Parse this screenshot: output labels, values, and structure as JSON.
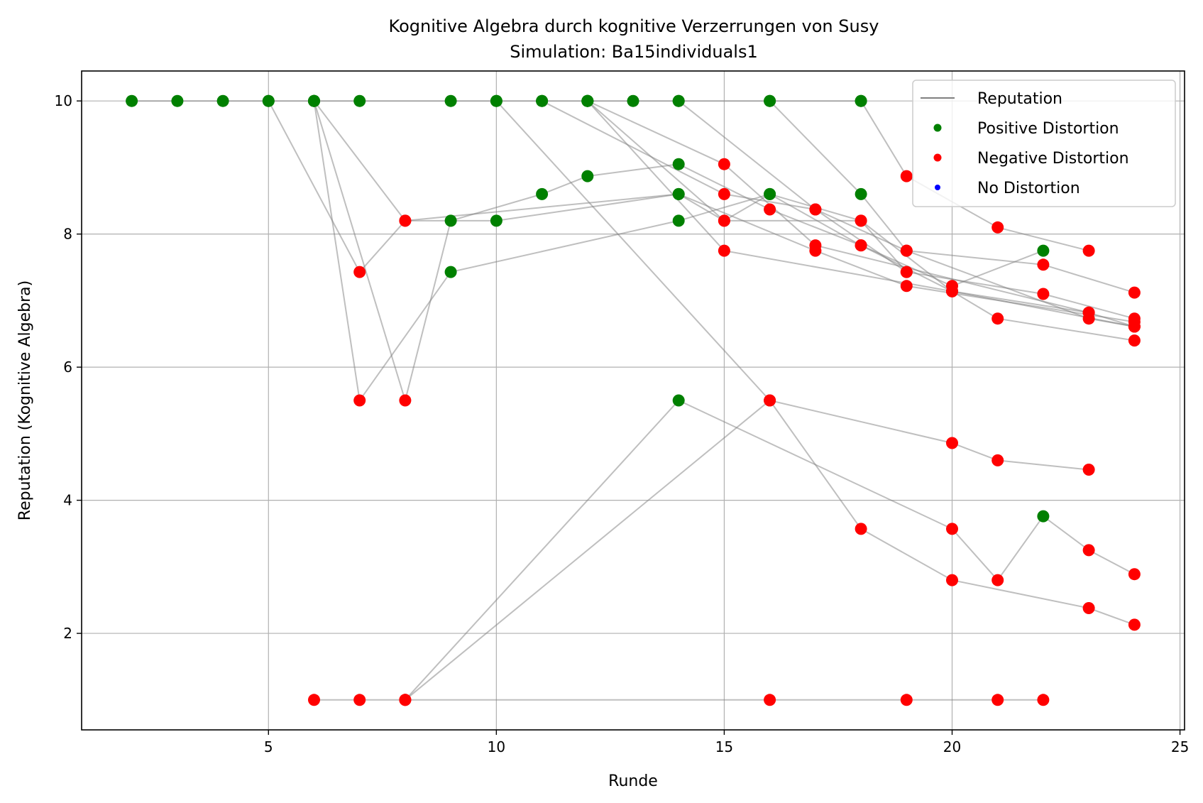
{
  "chart_data": {
    "type": "scatter",
    "title": "Kognitive Algebra durch kognitive Verzerrungen von Susy",
    "subtitle": "Simulation: Ba15individuals1",
    "xlabel": "Runde",
    "ylabel": "Reputation (Kognitive Algebra)",
    "xlim": [
      0.9,
      25.1
    ],
    "ylim": [
      0.55,
      10.45
    ],
    "xticks": [
      5,
      10,
      15,
      20,
      25
    ],
    "yticks": [
      2,
      4,
      6,
      8,
      10
    ],
    "grid": true,
    "legend_position": "top-right",
    "legend": [
      {
        "label": "Reputation",
        "kind": "line",
        "color": "#808080"
      },
      {
        "label": "Positive Distortion",
        "kind": "marker",
        "color": "#008000"
      },
      {
        "label": "Negative Distortion",
        "kind": "marker",
        "color": "#ff0000"
      },
      {
        "label": "No Distortion",
        "kind": "marker",
        "color": "#0000ff"
      }
    ],
    "colors": {
      "positive": "#008000",
      "negative": "#ff0000",
      "none": "#0000ff",
      "line": "#808080",
      "grid": "#b0b0b0"
    },
    "series": [
      {
        "points": [
          [
            2,
            10,
            "p"
          ],
          [
            3,
            10,
            "p"
          ],
          [
            4,
            10,
            "p"
          ],
          [
            5,
            10,
            "p"
          ],
          [
            6,
            10,
            "p"
          ],
          [
            7,
            10,
            "p"
          ],
          [
            9,
            10,
            "p"
          ],
          [
            10,
            10,
            "p"
          ],
          [
            11,
            10,
            "p"
          ],
          [
            12,
            10,
            "p"
          ],
          [
            13,
            10,
            "p"
          ],
          [
            14,
            10,
            "p"
          ],
          [
            16,
            10,
            "p"
          ],
          [
            18,
            10,
            "p"
          ]
        ]
      },
      {
        "points": [
          [
            5,
            10,
            "p"
          ],
          [
            7,
            7.43,
            "n"
          ],
          [
            8,
            8.2,
            "n"
          ],
          [
            14,
            8.6,
            "p"
          ],
          [
            15,
            8.2,
            "n"
          ],
          [
            16,
            8.6,
            "p"
          ],
          [
            18,
            8.2,
            "n"
          ],
          [
            19,
            7.43,
            "n"
          ]
        ]
      },
      {
        "points": [
          [
            6,
            10,
            "p"
          ],
          [
            7,
            5.5,
            "n"
          ],
          [
            9,
            7.43,
            "p"
          ],
          [
            14,
            8.2,
            "p"
          ],
          [
            16,
            8.6,
            "p"
          ],
          [
            18,
            7.83,
            "n"
          ],
          [
            20,
            7.22,
            "n"
          ],
          [
            22,
            7.75,
            "p"
          ]
        ]
      },
      {
        "points": [
          [
            6,
            10,
            "p"
          ],
          [
            8,
            5.5,
            "n"
          ],
          [
            9,
            8.2,
            "p"
          ],
          [
            11,
            8.6,
            "p"
          ],
          [
            12,
            8.87,
            "p"
          ],
          [
            14,
            9.05,
            "p"
          ],
          [
            16,
            8.37,
            "n"
          ],
          [
            18,
            7.83,
            "n"
          ],
          [
            20,
            7.14,
            "n"
          ],
          [
            24,
            6.61,
            "n"
          ]
        ]
      },
      {
        "points": [
          [
            6,
            10,
            "p"
          ],
          [
            8,
            8.2,
            "n"
          ],
          [
            10,
            8.2,
            "p"
          ],
          [
            14,
            8.6,
            "p"
          ],
          [
            17,
            7.75,
            "n"
          ],
          [
            19,
            7.22,
            "n"
          ],
          [
            24,
            6.68,
            "n"
          ]
        ]
      },
      {
        "points": [
          [
            10,
            10,
            "p"
          ],
          [
            16,
            5.5,
            "n"
          ],
          [
            20,
            4.86,
            "n"
          ],
          [
            21,
            4.6,
            "n"
          ],
          [
            23,
            4.46,
            "n"
          ]
        ]
      },
      {
        "points": [
          [
            11,
            10,
            "p"
          ],
          [
            15,
            8.6,
            "n"
          ],
          [
            17,
            8.37,
            "n"
          ],
          [
            19,
            7.75,
            "n"
          ],
          [
            23,
            6.73,
            "n"
          ],
          [
            24,
            6.61,
            "n"
          ]
        ]
      },
      {
        "points": [
          [
            12,
            10,
            "p"
          ],
          [
            15,
            8.2,
            "n"
          ],
          [
            18,
            8.2,
            "n"
          ],
          [
            20,
            7.14,
            "n"
          ],
          [
            21,
            6.73,
            "n"
          ],
          [
            24,
            6.4,
            "n"
          ]
        ]
      },
      {
        "points": [
          [
            14,
            10,
            "p"
          ],
          [
            17,
            8.37,
            "n"
          ],
          [
            19,
            7.43,
            "n"
          ],
          [
            22,
            7.1,
            "n"
          ],
          [
            24,
            6.73,
            "n"
          ]
        ]
      },
      {
        "points": [
          [
            16,
            10,
            "p"
          ],
          [
            18,
            8.6,
            "p"
          ],
          [
            19,
            7.75,
            "n"
          ],
          [
            22,
            7.54,
            "n"
          ],
          [
            24,
            7.12,
            "n"
          ]
        ]
      },
      {
        "points": [
          [
            18,
            10,
            "p"
          ],
          [
            19,
            8.87,
            "n"
          ],
          [
            21,
            8.1,
            "n"
          ],
          [
            23,
            7.75,
            "n"
          ]
        ]
      },
      {
        "points": [
          [
            12,
            10,
            "p"
          ],
          [
            15,
            9.05,
            "n"
          ],
          [
            17,
            7.83,
            "n"
          ],
          [
            23,
            6.82,
            "n"
          ]
        ]
      },
      {
        "points": [
          [
            12,
            10,
            "p"
          ],
          [
            15,
            7.75,
            "n"
          ],
          [
            20,
            7.14,
            "n"
          ],
          [
            23,
            6.82,
            "n"
          ],
          [
            24,
            6.61,
            "n"
          ]
        ]
      },
      {
        "points": [
          [
            6,
            1,
            "n"
          ],
          [
            7,
            1,
            "n"
          ],
          [
            8,
            1,
            "n"
          ],
          [
            16,
            1,
            "n"
          ],
          [
            19,
            1,
            "n"
          ],
          [
            21,
            1,
            "n"
          ],
          [
            22,
            1,
            "n"
          ]
        ]
      },
      {
        "points": [
          [
            8,
            1,
            "n"
          ],
          [
            14,
            5.5,
            "p"
          ],
          [
            20,
            3.57,
            "n"
          ],
          [
            21,
            2.8,
            "n"
          ],
          [
            22,
            3.76,
            "p"
          ],
          [
            23,
            3.25,
            "n"
          ],
          [
            24,
            2.89,
            "n"
          ]
        ]
      },
      {
        "points": [
          [
            8,
            1,
            "n"
          ],
          [
            16,
            5.5,
            "n"
          ],
          [
            18,
            3.57,
            "n"
          ],
          [
            20,
            2.8,
            "n"
          ],
          [
            23,
            2.38,
            "n"
          ],
          [
            24,
            2.13,
            "n"
          ]
        ]
      }
    ]
  }
}
